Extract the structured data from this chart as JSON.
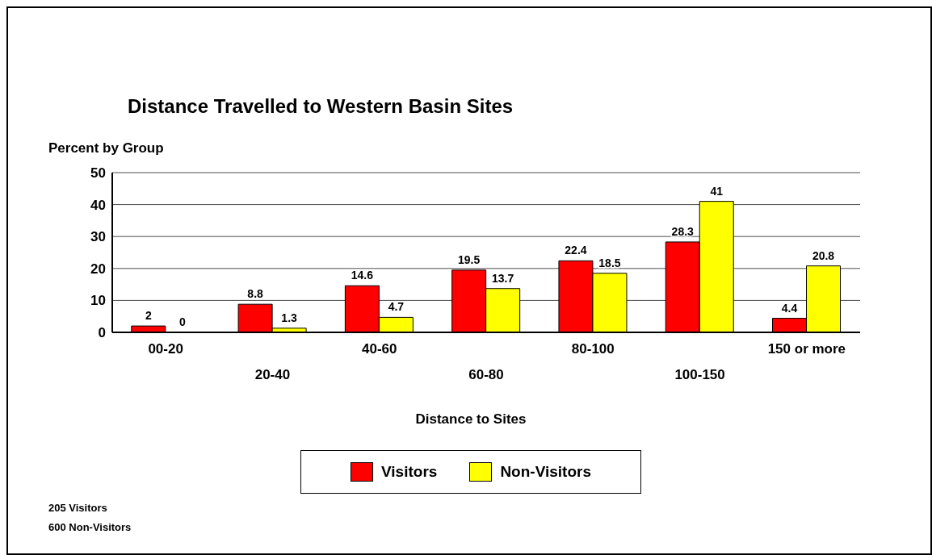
{
  "chart_data": {
    "type": "bar",
    "title": "Distance Travelled  to Western Basin Sites",
    "xlabel": "Distance to Sites",
    "ylabel": "Percent by Group",
    "categories": [
      "00-20",
      "20-40",
      "40-60",
      "60-80",
      "80-100",
      "100-150",
      "150 or more"
    ],
    "series": [
      {
        "name": "Visitors",
        "color": "#ff0000",
        "values": [
          2,
          8.8,
          14.6,
          19.5,
          22.4,
          28.3,
          4.4
        ]
      },
      {
        "name": "Non-Visitors",
        "color": "#ffff00",
        "values": [
          0,
          1.3,
          4.7,
          13.7,
          18.5,
          41,
          20.8
        ]
      }
    ],
    "ylim": [
      0,
      50
    ],
    "yticks": [
      0,
      10,
      20,
      30,
      40,
      50
    ],
    "grid": "y",
    "legend": "bottom",
    "data_labels": true,
    "annotations": [
      "205 Visitors",
      "600 Non-Visitors"
    ]
  }
}
